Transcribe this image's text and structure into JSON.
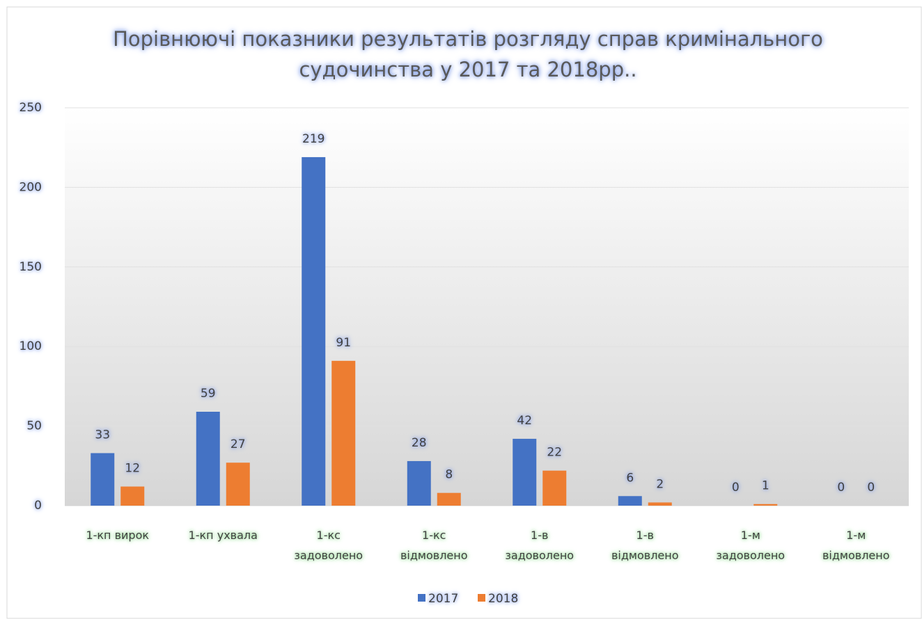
{
  "chart_data": {
    "type": "bar",
    "title": "Порівнюючі показники результатів розгляду справ кримінального\nсудочинства у 2017 та 2018рр..",
    "categories": [
      "1-кп вирок",
      "1-кп ухвала",
      "1-кс\nзадоволено",
      "1-кс\nвідмовлено",
      "1-в\nзадоволено",
      "1-в\nвідмовлено",
      "1-м\nзадоволено",
      "1-м\nвідмовлено"
    ],
    "series": [
      {
        "name": "2017",
        "color": "#4472c4",
        "values": [
          33,
          59,
          219,
          28,
          42,
          6,
          0,
          0
        ]
      },
      {
        "name": "2018",
        "color": "#ed7d31",
        "values": [
          12,
          27,
          91,
          8,
          22,
          2,
          1,
          0
        ]
      }
    ],
    "ylim": [
      0,
      250
    ],
    "yticks": [
      0,
      50,
      100,
      150,
      200,
      250
    ],
    "grid": true,
    "legend": "bottom"
  }
}
